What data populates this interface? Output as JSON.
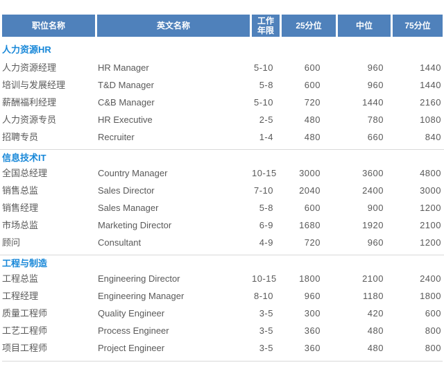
{
  "table": {
    "columns": [
      {
        "key": "position",
        "label": "职位名称"
      },
      {
        "key": "english",
        "label": "英文名称"
      },
      {
        "key": "years",
        "label": "工作\n年限"
      },
      {
        "key": "p25",
        "label": "25分位"
      },
      {
        "key": "median",
        "label": "中位"
      },
      {
        "key": "p75",
        "label": "75分位"
      }
    ],
    "sections": [
      {
        "title": "人力资源HR",
        "rows": [
          [
            "人力资源经理",
            "HR Manager",
            "5-10",
            "600",
            "960",
            "1440"
          ],
          [
            "培训与发展经理",
            "T&D Manager",
            "5-8",
            "600",
            "960",
            "1440"
          ],
          [
            "薪酬福利经理",
            "C&B Manager",
            "5-10",
            "720",
            "1440",
            "2160"
          ],
          [
            "人力资源专员",
            "HR Executive",
            "2-5",
            "480",
            "780",
            "1080"
          ],
          [
            "招聘专员",
            "Recruiter",
            "1-4",
            "480",
            "660",
            "840"
          ]
        ]
      },
      {
        "title": "信息技术IT",
        "rows": [
          [
            "全国总经理",
            "Country Manager",
            "10-15",
            "3000",
            "3600",
            "4800"
          ],
          [
            "销售总监",
            "Sales Director",
            "7-10",
            "2040",
            "2400",
            "3000"
          ],
          [
            "销售经理",
            "Sales Manager",
            "5-8",
            "600",
            "900",
            "1200"
          ],
          [
            "市场总监",
            "Marketing Director",
            "6-9",
            "1680",
            "1920",
            "2100"
          ],
          [
            "顾问",
            "Consultant",
            "4-9",
            "720",
            "960",
            "1200"
          ]
        ]
      },
      {
        "title": "工程与制造",
        "rows": [
          [
            "工程总监",
            "Engineering Director",
            "10-15",
            "1800",
            "2100",
            "2400"
          ],
          [
            "工程经理",
            "Engineering Manager",
            "8-10",
            "960",
            "1180",
            "1800"
          ],
          [
            "质量工程师",
            "Quality Engineer",
            "3-5",
            "300",
            "420",
            "600"
          ],
          [
            "工艺工程师",
            "Process Engineer",
            "3-5",
            "360",
            "480",
            "800"
          ],
          [
            "项目工程师",
            "Project Engineer",
            "3-5",
            "360",
            "480",
            "800"
          ]
        ]
      }
    ]
  },
  "colors": {
    "header_bg": "#4f81bb",
    "header_text": "#ffffff",
    "section_title": "#1787d8",
    "body_text": "#595959",
    "divider": "#d9d9d9"
  }
}
